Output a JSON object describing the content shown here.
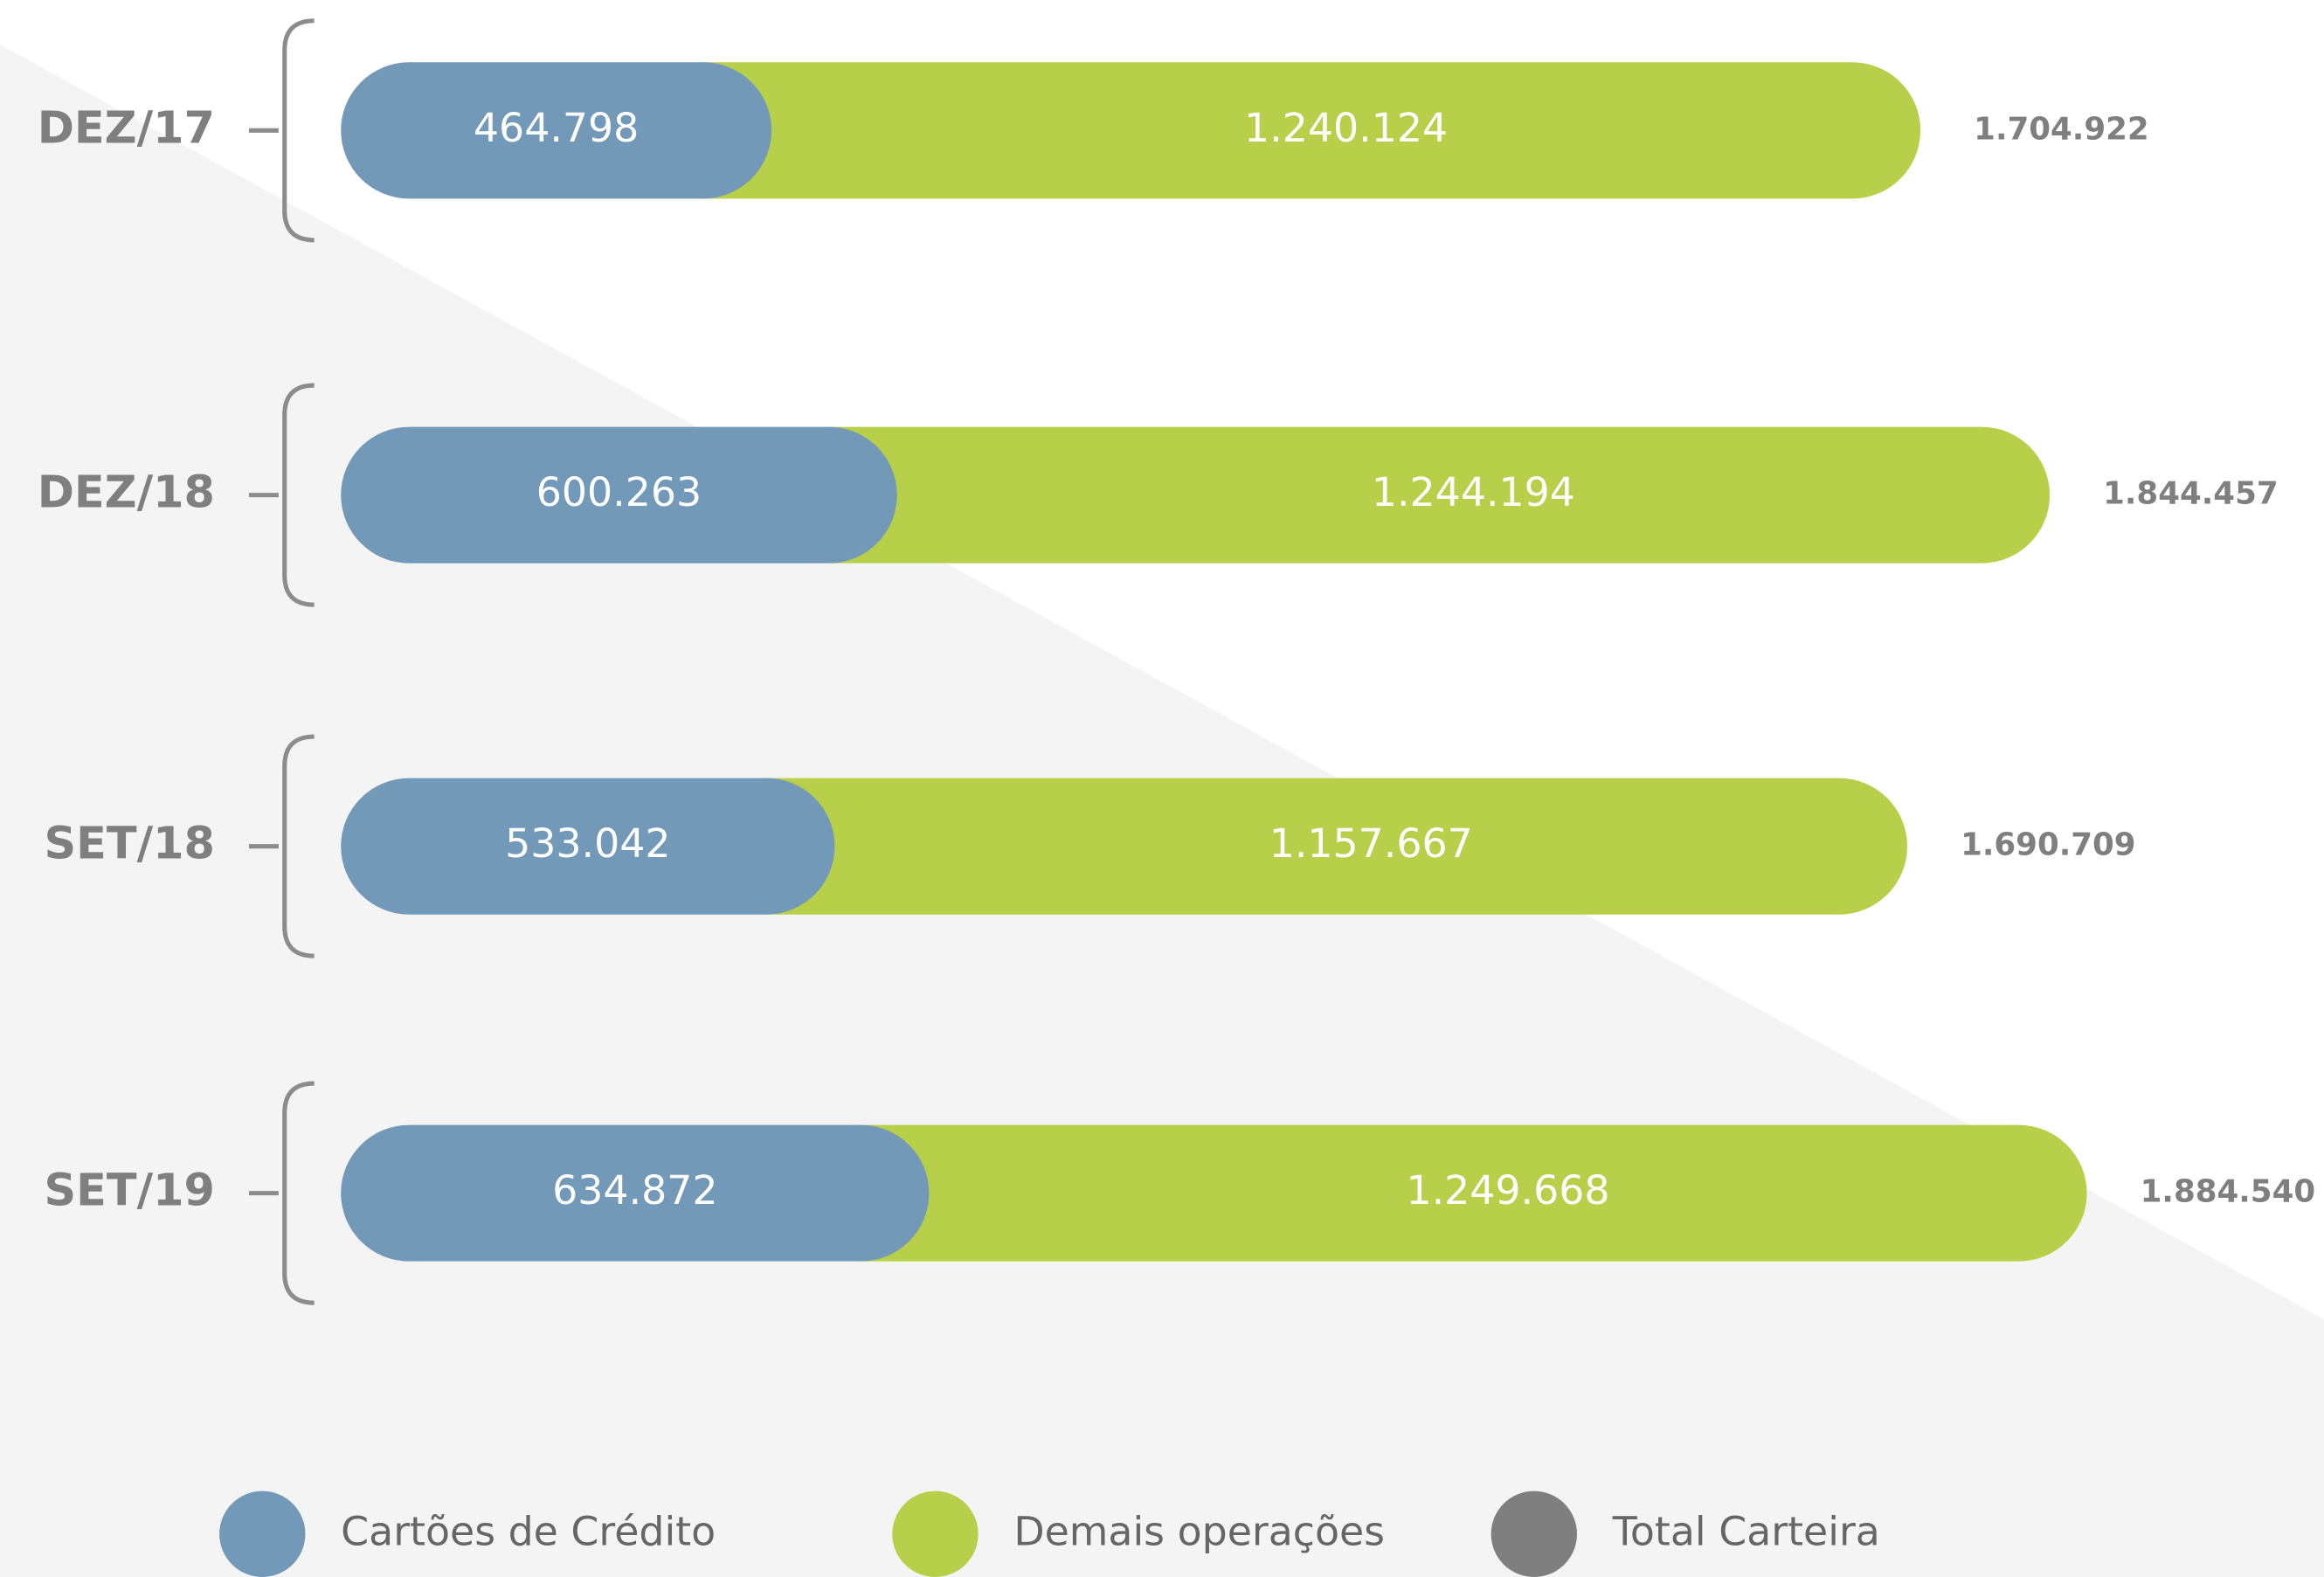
{
  "chart_data": {
    "type": "stacked-bar",
    "orientation": "horizontal",
    "categories": [
      "DEZ/17",
      "DEZ/18",
      "SET/18",
      "SET/19"
    ],
    "series": [
      {
        "name": "Cartões de Crédito",
        "color": "#7299b7",
        "values": [
          464798,
          600263,
          533042,
          634872
        ],
        "value_labels": [
          "464.798",
          "600.263",
          "533.042",
          "634.872"
        ]
      },
      {
        "name": "Demais operações",
        "color": "#b8cf4a",
        "values": [
          1240124,
          1244194,
          1157667,
          1249668
        ],
        "value_labels": [
          "1.240.124",
          "1.244.194",
          "1.157.667",
          "1.249.668"
        ]
      },
      {
        "name": "Total Carteira",
        "color": "#7f7f7f",
        "values": [
          1704922,
          1844457,
          1690709,
          1884540
        ],
        "value_labels": [
          "1.704.922",
          "1.844.457",
          "1.690.709",
          "1.884.540"
        ]
      }
    ]
  }
}
